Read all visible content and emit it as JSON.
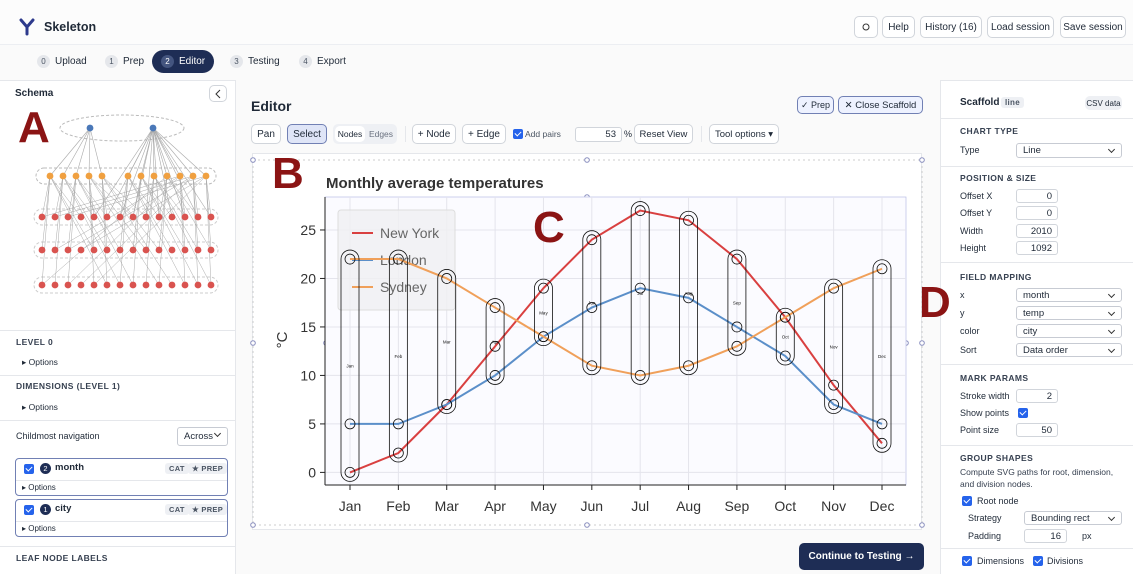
{
  "header": {
    "app_name": "Skeleton",
    "buttons": [
      "Help",
      "History (16)",
      "Load session",
      "Save session"
    ]
  },
  "tabs": [
    {
      "step": "0",
      "label": "Upload"
    },
    {
      "step": "1",
      "label": "Prep"
    },
    {
      "step": "2",
      "label": "Editor"
    },
    {
      "step": "3",
      "label": "Testing"
    },
    {
      "step": "4",
      "label": "Export"
    }
  ],
  "active_tab": 2,
  "schema": {
    "title": "Schema",
    "marker": "A",
    "level0": "LEVEL 0",
    "dimensions_heading": "DIMENSIONS (LEVEL 1)",
    "options": "▸ Options",
    "navigation": {
      "label": "Childmost navigation",
      "value": "Across"
    },
    "dimensions": [
      {
        "order": "2",
        "name": "month",
        "tags": [
          "CAT",
          "★ PREP"
        ]
      },
      {
        "order": "1",
        "name": "city",
        "tags": [
          "CAT",
          "★ PREP"
        ]
      }
    ],
    "leaf_heading": "LEAF NODE LABELS"
  },
  "editor": {
    "title": "Editor",
    "prep": "✓ Prep",
    "close": "✕ Close Scaffold",
    "toolbar": {
      "pan": "Pan",
      "select": "Select",
      "nodes": "Nodes",
      "edges": "Edges",
      "add_node": "+ Node",
      "add_edge": "+ Edge",
      "add_pairs": "Add pairs",
      "zoom": 53,
      "zoom_unit": "%",
      "reset": "Reset View",
      "tool_options": "Tool options ▾"
    },
    "markers": [
      "B",
      "C"
    ],
    "chart": {
      "type": "line",
      "title": "Monthly average temperatures",
      "y_label": "°C",
      "categories": [
        "Jan",
        "Feb",
        "Mar",
        "Apr",
        "May",
        "Jun",
        "Jul",
        "Aug",
        "Sep",
        "Oct",
        "Nov",
        "Dec"
      ],
      "series": [
        {
          "name": "New York",
          "color": "#d94040",
          "values": [
            0,
            2,
            7,
            13,
            19,
            24,
            27,
            26,
            22,
            16,
            9,
            3
          ]
        },
        {
          "name": "London",
          "color": "#5b8fc9",
          "values": [
            5,
            5,
            7,
            10,
            14,
            17,
            19,
            18,
            15,
            12,
            7,
            5
          ]
        },
        {
          "name": "Sydney",
          "color": "#f0a05a",
          "values": [
            22,
            22,
            20,
            17,
            14,
            11,
            10,
            11,
            13,
            16,
            19,
            21
          ]
        }
      ],
      "ylim": [
        -1.3,
        28.4
      ],
      "yticks": [
        0,
        5,
        10,
        15,
        20,
        25
      ],
      "grid": true
    },
    "continue": "Continue to Testing →"
  },
  "scaffold": {
    "title": "Scaffold",
    "tag": "line",
    "csv": "CSV data",
    "marker": "D",
    "chart_type": {
      "heading": "CHART TYPE",
      "label": "Type",
      "value": "Line"
    },
    "position": {
      "heading": "POSITION & SIZE",
      "fields": [
        {
          "label": "Offset X",
          "value": 0
        },
        {
          "label": "Offset Y",
          "value": 0
        },
        {
          "label": "Width",
          "value": 2010
        },
        {
          "label": "Height",
          "value": 1092
        }
      ]
    },
    "mapping": {
      "heading": "FIELD MAPPING",
      "fields": [
        {
          "label": "x",
          "value": "month"
        },
        {
          "label": "y",
          "value": "temp"
        },
        {
          "label": "color",
          "value": "city"
        },
        {
          "label": "Sort",
          "value": "Data order"
        }
      ]
    },
    "mark": {
      "heading": "MARK PARAMS",
      "stroke_label": "Stroke width",
      "stroke": 2,
      "points_label": "Show points",
      "size_label": "Point size",
      "size": 50
    },
    "group": {
      "heading": "GROUP SHAPES",
      "description": "Compute SVG paths for root, dimension, and division nodes.",
      "root": "Root node",
      "strategy_label": "Strategy",
      "strategy": "Bounding rect",
      "padding_label": "Padding",
      "padding": 16,
      "padding_unit": "px",
      "dimensions": "Dimensions",
      "divisions": "Divisions"
    }
  }
}
